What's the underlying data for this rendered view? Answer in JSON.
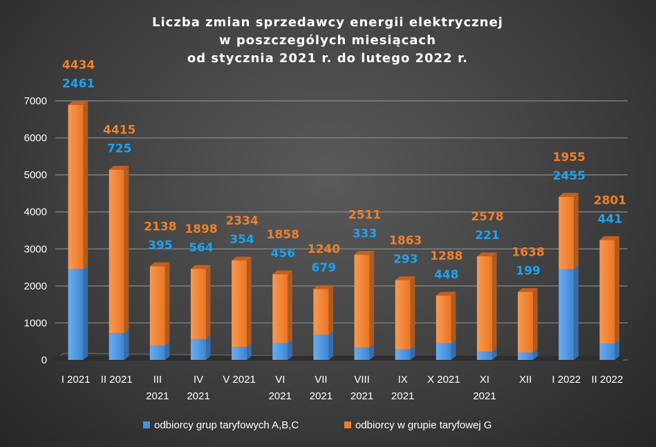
{
  "chart_data": {
    "type": "bar",
    "stacked": true,
    "title": [
      "Liczba zmian sprzedawcy energii elektrycznej",
      "w poszczególych miesiącach",
      "od stycznia 2021 r. do lutego 2022 r."
    ],
    "categories": [
      [
        "I 2021"
      ],
      [
        "II 2021"
      ],
      [
        "III",
        "2021"
      ],
      [
        "IV",
        "2021"
      ],
      [
        "V 2021"
      ],
      [
        "VI",
        "2021"
      ],
      [
        "VII",
        "2021"
      ],
      [
        "VIII",
        "2021"
      ],
      [
        "IX",
        "2021"
      ],
      [
        "X 2021"
      ],
      [
        "XI",
        "2021"
      ],
      [
        "XII"
      ],
      [
        "I 2022"
      ],
      [
        "II 2022"
      ]
    ],
    "series": [
      {
        "name": "odbiorcy grup taryfowych A,B,C",
        "color": "#4a90e2",
        "label_color": "#1aa3f0",
        "values": [
          2461,
          725,
          395,
          564,
          354,
          456,
          679,
          333,
          293,
          448,
          221,
          199,
          2455,
          441
        ]
      },
      {
        "name": "odbiorcy w grupie taryfowej G",
        "color": "#f07f2a",
        "label_color": "#f07f2a",
        "values": [
          4434,
          4415,
          2138,
          1898,
          2334,
          1858,
          1240,
          2511,
          1863,
          1288,
          2578,
          1638,
          1955,
          2801
        ]
      }
    ],
    "ylim": [
      0,
      7000
    ],
    "yticks": [
      0,
      1000,
      2000,
      3000,
      4000,
      5000,
      6000,
      7000
    ],
    "grid": true,
    "legend": "bottom"
  }
}
